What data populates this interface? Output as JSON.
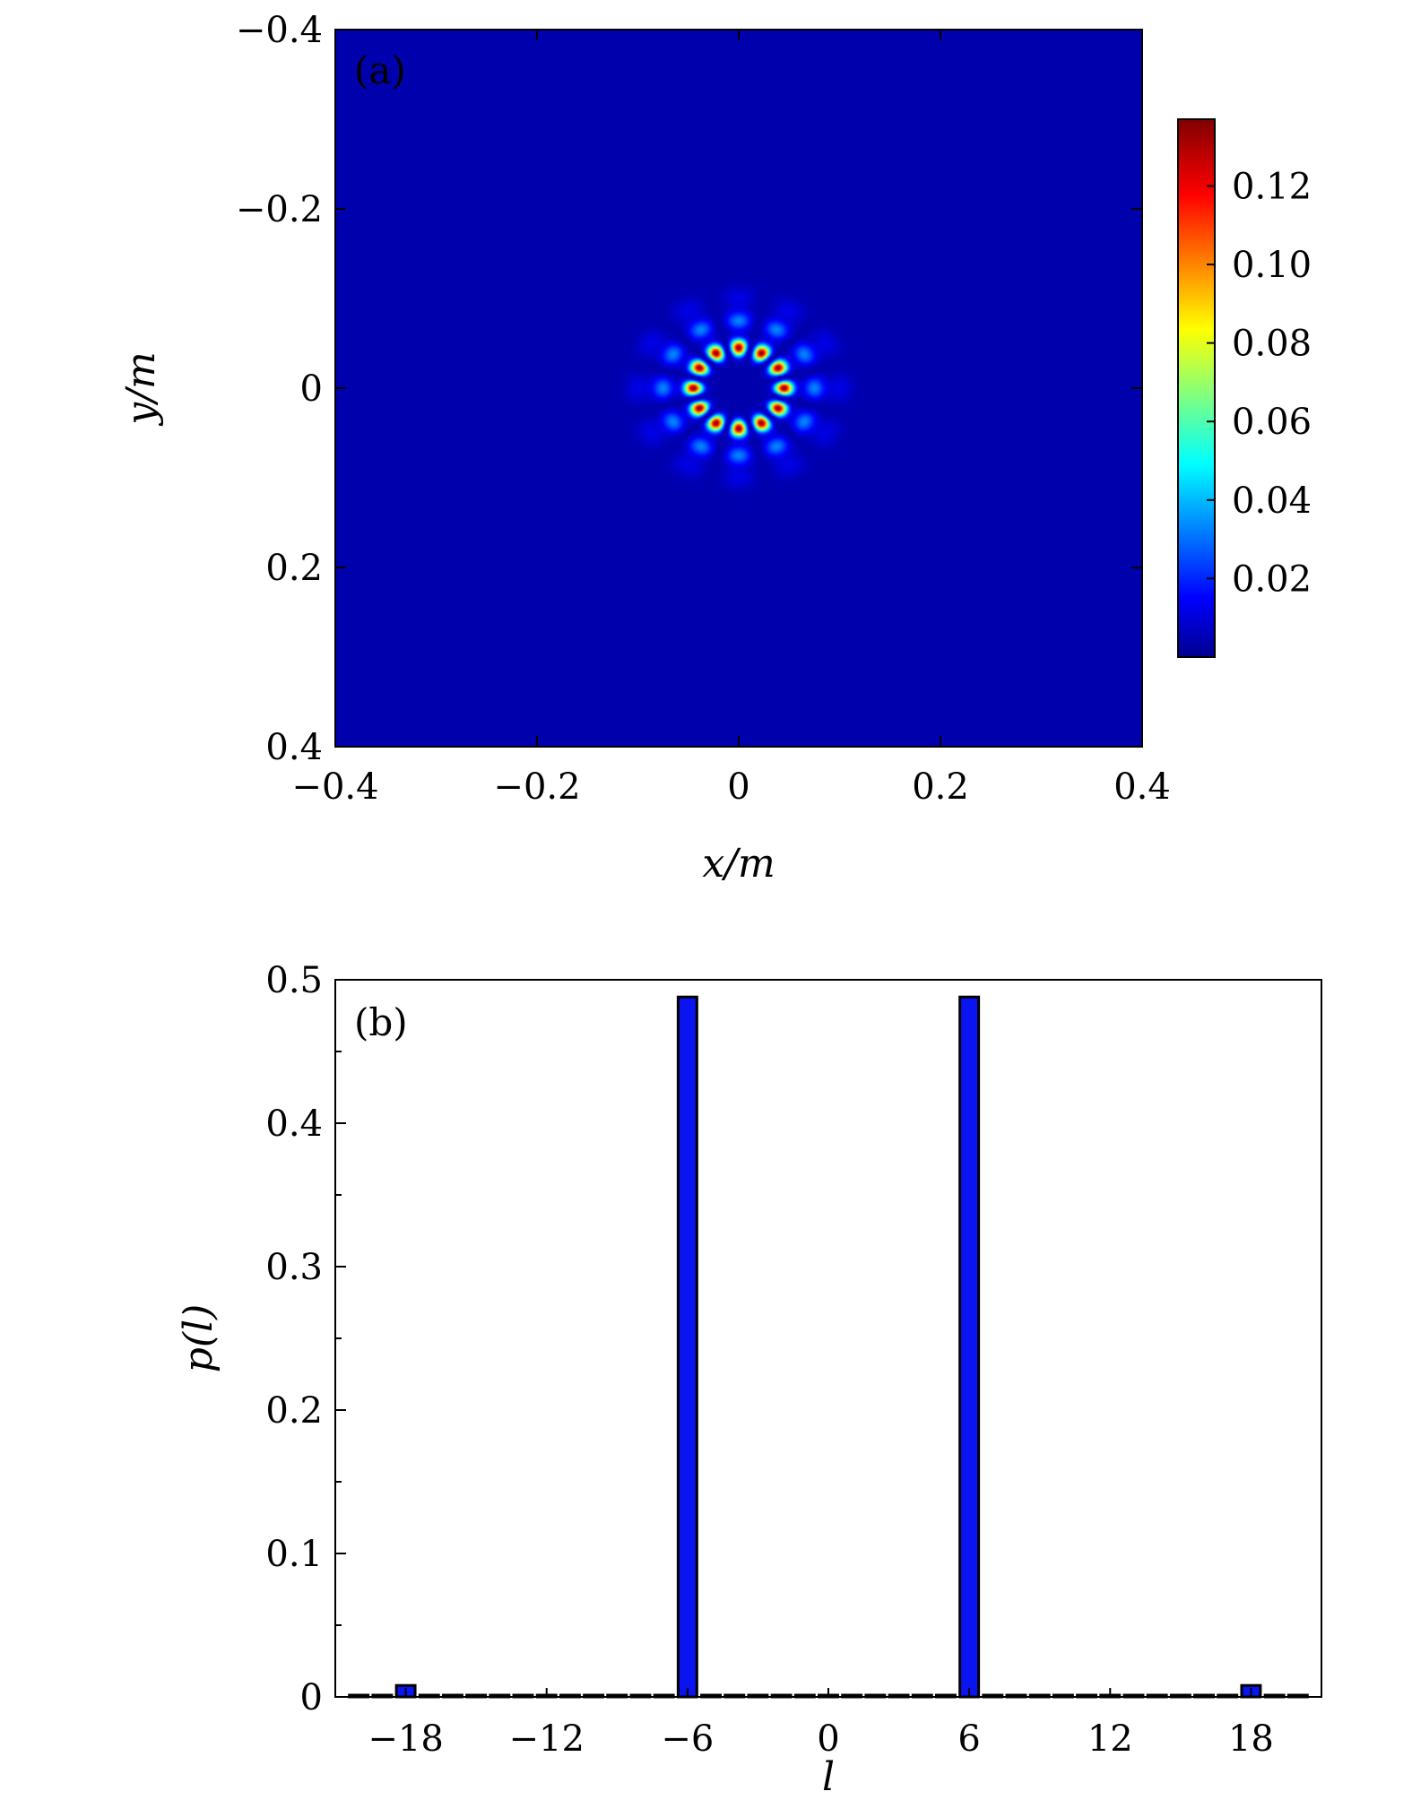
{
  "chart_data": [
    {
      "type": "heatmap",
      "panel_label": "(a)",
      "xlabel": "x/m",
      "ylabel": "y/m",
      "xlim": [
        -0.4,
        0.4
      ],
      "ylim": [
        -0.4,
        0.4
      ],
      "y_axis_inverted": true,
      "x_ticks": [
        "−0.4",
        "−0.2",
        "0",
        "0.2",
        "0.4"
      ],
      "y_ticks": [
        "−0.4",
        "−0.2",
        "0",
        "0.2",
        "0.4"
      ],
      "colormap": "jet",
      "colorbar": {
        "range": [
          0,
          0.137
        ],
        "ticks": [
          "0.02",
          "0.04",
          "0.06",
          "0.08",
          "0.10",
          "0.12"
        ],
        "tick_values": [
          0.02,
          0.04,
          0.06,
          0.08,
          0.1,
          0.12
        ]
      },
      "pattern": {
        "description_values": {
          "inner_lobe_count": 12,
          "inner_ring_radius_m": 0.045,
          "inner_peak": 0.137,
          "outer_lobe_count": 12,
          "outer_ring_radius_m": 0.075,
          "outer_peak": 0.03,
          "third_ring_radius_m": 0.1,
          "third_peak": 0.008
        }
      },
      "background_color": "#00008f"
    },
    {
      "type": "bar",
      "panel_label": "(b)",
      "xlabel": "l",
      "ylabel": "p(l)",
      "xlim": [
        -21,
        21
      ],
      "ylim": [
        0,
        0.5
      ],
      "x_ticks": [
        "−18",
        "−12",
        "−6",
        "0",
        "6",
        "12",
        "18"
      ],
      "x_tick_values": [
        -18,
        -12,
        -6,
        0,
        6,
        12,
        18
      ],
      "y_ticks": [
        "0",
        "0.1",
        "0.2",
        "0.3",
        "0.4",
        "0.5"
      ],
      "y_tick_values": [
        0,
        0.1,
        0.2,
        0.3,
        0.4,
        0.5
      ],
      "categories": [
        -20,
        -19,
        -18,
        -17,
        -16,
        -15,
        -14,
        -13,
        -12,
        -11,
        -10,
        -9,
        -8,
        -7,
        -6,
        -5,
        -4,
        -3,
        -2,
        -1,
        0,
        1,
        2,
        3,
        4,
        5,
        6,
        7,
        8,
        9,
        10,
        11,
        12,
        13,
        14,
        15,
        16,
        17,
        18,
        19,
        20
      ],
      "values": [
        0,
        0,
        0.008,
        0,
        0,
        0,
        0,
        0,
        0,
        0,
        0,
        0,
        0,
        0,
        0.488,
        0,
        0,
        0,
        0,
        0,
        0,
        0,
        0,
        0,
        0,
        0,
        0.488,
        0,
        0,
        0,
        0,
        0,
        0,
        0,
        0,
        0,
        0,
        0,
        0.008,
        0,
        0
      ],
      "bar_color": "#0a14f0",
      "edge_color": "#000000"
    }
  ]
}
